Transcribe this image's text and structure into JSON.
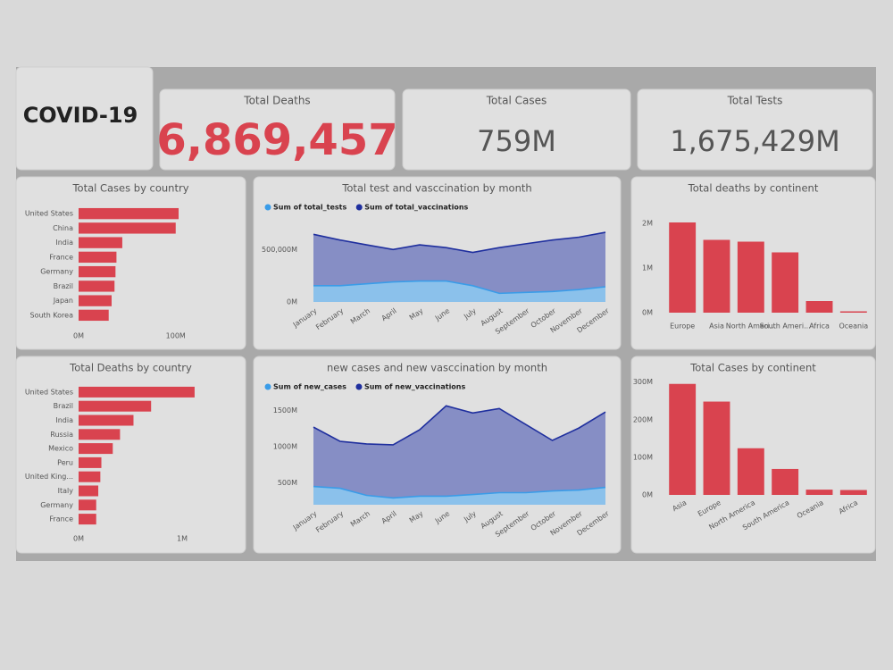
{
  "title": "COVID-19",
  "kpis": [
    {
      "label": "Total Deaths",
      "value": "6,869,457",
      "color": "#d9434f"
    },
    {
      "label": "Total Cases",
      "value": "759M",
      "color": "#555555"
    },
    {
      "label": "Total Tests",
      "value": "1,675,429M",
      "color": "#555555"
    }
  ],
  "chart_data": [
    {
      "type": "bar",
      "horizontal": true,
      "title": "Total Cases by country",
      "color": "#d9434f",
      "categories": [
        "United States",
        "China",
        "India",
        "France",
        "Germany",
        "Brazil",
        "Japan",
        "South Korea"
      ],
      "values": [
        103000000,
        100000000,
        45000000,
        39000000,
        38000000,
        37000000,
        34000000,
        31000000
      ],
      "xlim": [
        0,
        160000000
      ],
      "xticks": [
        {
          "value": 0,
          "label": "0M"
        },
        {
          "value": 100000000,
          "label": "100M"
        }
      ]
    },
    {
      "type": "area",
      "title": "Total test and vasccination by month",
      "categories": [
        "January",
        "February",
        "March",
        "April",
        "May",
        "June",
        "July",
        "August",
        "September",
        "October",
        "November",
        "December"
      ],
      "series": [
        {
          "name": "Sum of total_tests",
          "color": "#3a9ce8",
          "values": [
            155000000000,
            155000000000,
            173000000000,
            191000000000,
            200000000000,
            200000000000,
            155000000000,
            82000000000,
            91000000000,
            100000000000,
            118000000000,
            145000000000
          ]
        },
        {
          "name": "Sum of total_vaccinations",
          "color": "#1f2f9e",
          "values": [
            645000000000,
            591000000000,
            545000000000,
            500000000000,
            545000000000,
            518000000000,
            473000000000,
            518000000000,
            555000000000,
            591000000000,
            618000000000,
            664000000000
          ]
        }
      ],
      "ylim": [
        0,
        750000000000
      ],
      "yticks": [
        {
          "value": 0,
          "label": "0M"
        },
        {
          "value": 500000000000,
          "label": "500,000M"
        }
      ]
    },
    {
      "type": "bar",
      "title": "Total deaths by continent",
      "color": "#d9434f",
      "categories": [
        "Europe",
        "Asia",
        "North Ameri...",
        "South Ameri...",
        "Africa",
        "Oceania"
      ],
      "values": [
        2020000,
        1630000,
        1590000,
        1350000,
        260000,
        30000
      ],
      "ylim": [
        0,
        2200000
      ],
      "yticks": [
        {
          "value": 0,
          "label": "0M"
        },
        {
          "value": 1000000,
          "label": "1M"
        },
        {
          "value": 2000000,
          "label": "2M"
        }
      ]
    },
    {
      "type": "bar",
      "horizontal": true,
      "title": "Total Deaths by country",
      "color": "#d9434f",
      "categories": [
        "United States",
        "Brazil",
        "India",
        "Russia",
        "Mexico",
        "Peru",
        "United King...",
        "Italy",
        "Germany",
        "France"
      ],
      "values": [
        1120000,
        700000,
        530000,
        400000,
        330000,
        220000,
        210000,
        190000,
        170000,
        170000
      ],
      "xlim": [
        0,
        1500000
      ],
      "xticks": [
        {
          "value": 0,
          "label": "0M"
        },
        {
          "value": 1000000,
          "label": "1M"
        }
      ]
    },
    {
      "type": "area",
      "title": "new cases and new vasccination by month",
      "categories": [
        "January",
        "February",
        "March",
        "April",
        "May",
        "June",
        "July",
        "August",
        "September",
        "October",
        "November",
        "December"
      ],
      "series": [
        {
          "name": "Sum of new_cases",
          "color": "#3a9ce8",
          "values": [
            451000000,
            427000000,
            329000000,
            293000000,
            317000000,
            317000000,
            341000000,
            366000000,
            366000000,
            390000000,
            402000000,
            439000000
          ]
        },
        {
          "name": "Sum of new_vaccinations",
          "color": "#1f2f9e",
          "values": [
            1268000000,
            1073000000,
            1037000000,
            1024000000,
            1232000000,
            1561000000,
            1463000000,
            1524000000,
            1305000000,
            1085000000,
            1256000000,
            1476000000
          ]
        }
      ],
      "ylim": [
        200000000,
        1700000000
      ],
      "yticks": [
        {
          "value": 500000000,
          "label": "500M"
        },
        {
          "value": 1000000000,
          "label": "1000M"
        },
        {
          "value": 1500000000,
          "label": "1500M"
        }
      ]
    },
    {
      "type": "bar",
      "title": "Total Cases by continent",
      "color": "#d9434f",
      "categories": [
        "Asia",
        "Europe",
        "North America",
        "South America",
        "Oceania",
        "Africa"
      ],
      "values": [
        295000000,
        248000000,
        124000000,
        69000000,
        14000000,
        13000000
      ],
      "ylim": [
        0,
        330000000
      ],
      "yticks": [
        {
          "value": 0,
          "label": "0M"
        },
        {
          "value": 100000000,
          "label": "100M"
        },
        {
          "value": 200000000,
          "label": "200M"
        },
        {
          "value": 300000000,
          "label": "300M"
        }
      ]
    }
  ]
}
